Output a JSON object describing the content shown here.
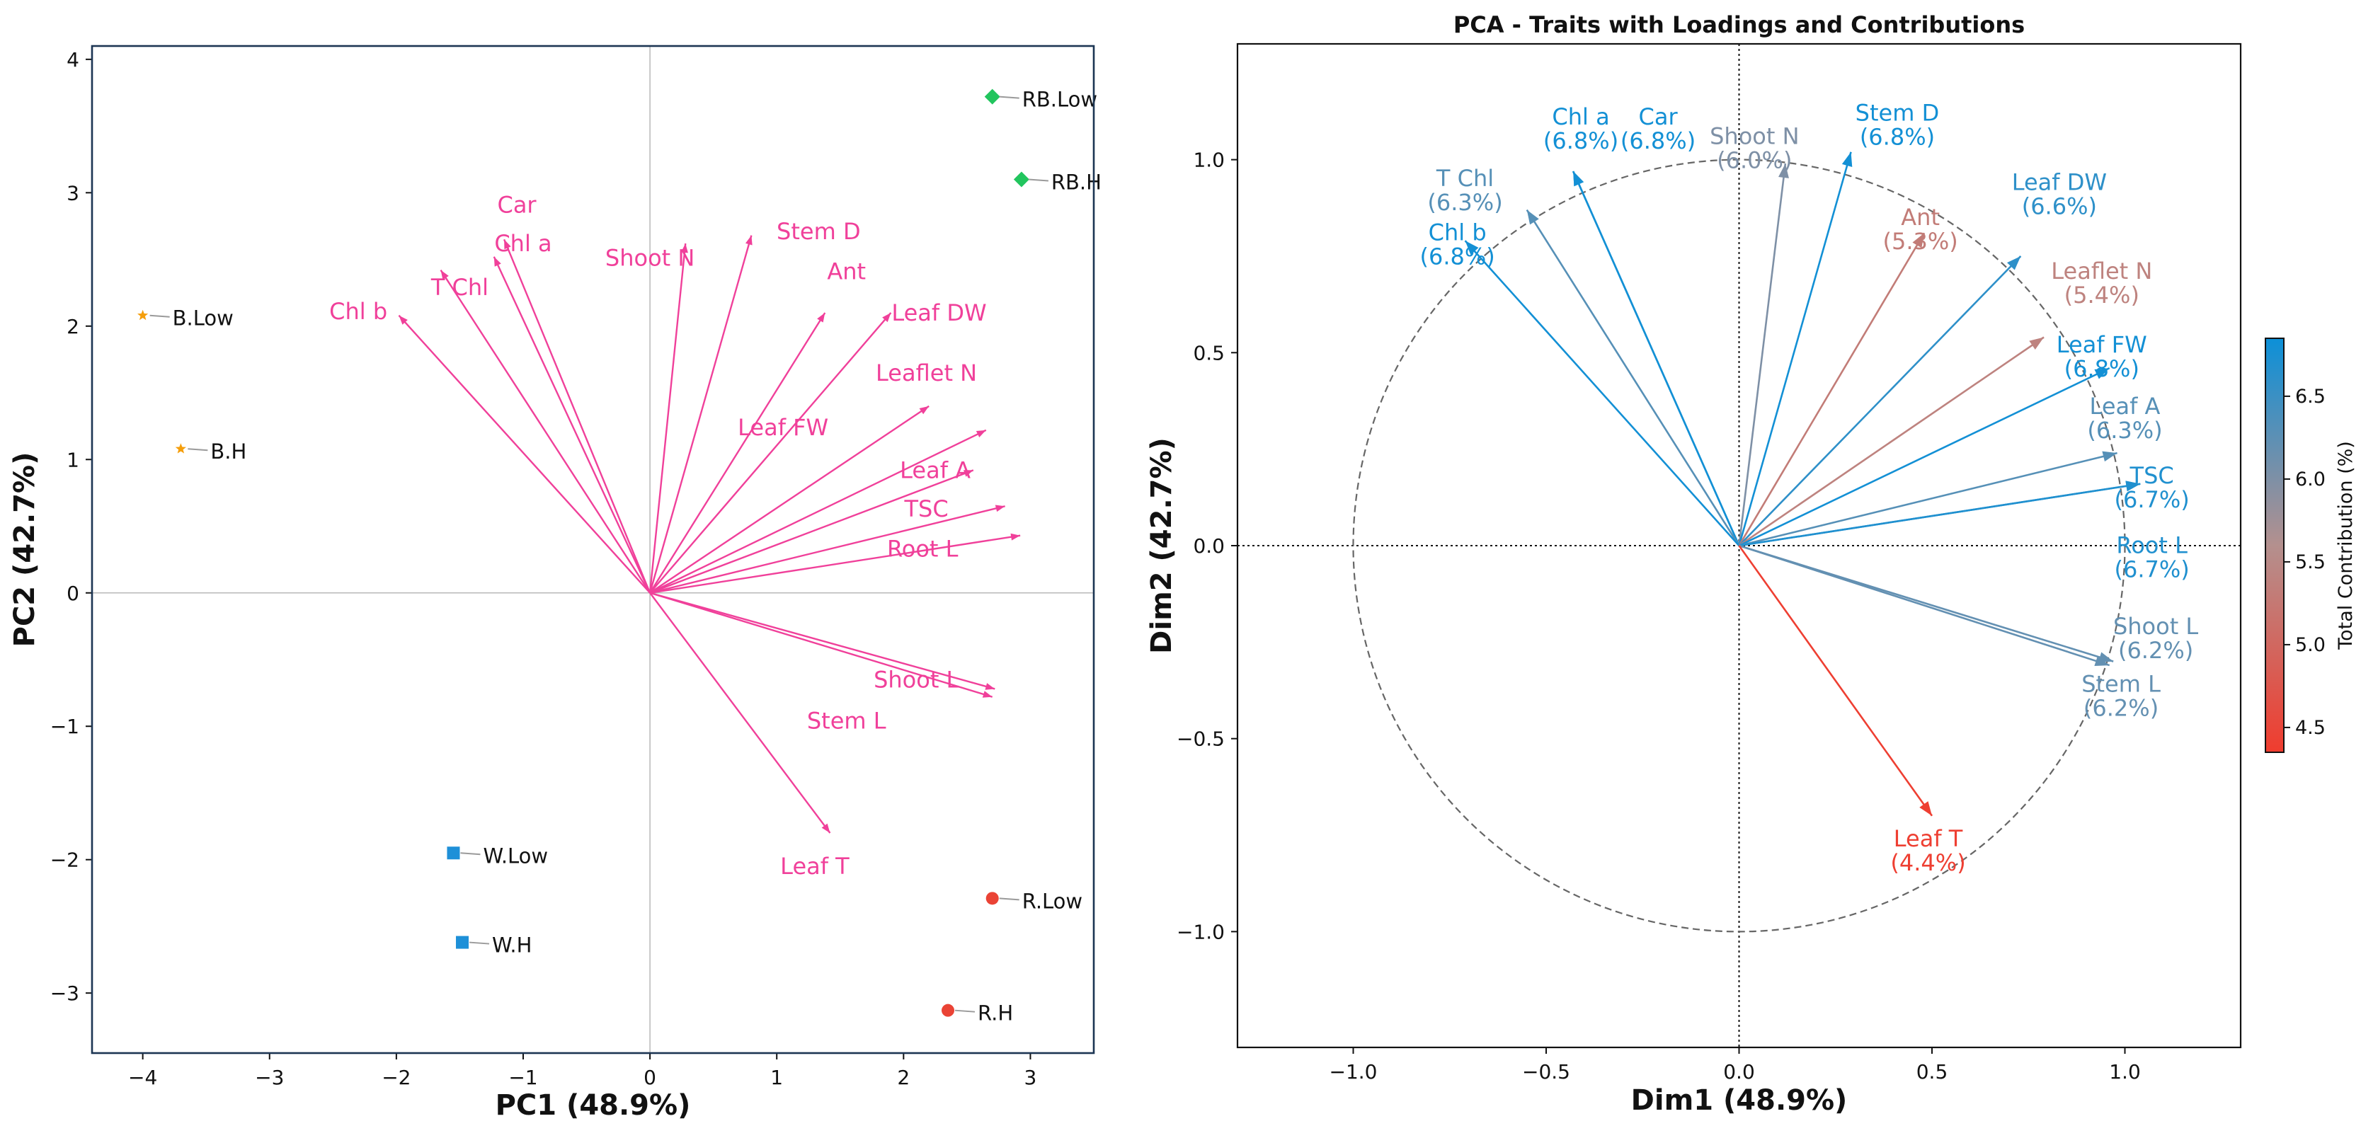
{
  "chart_data": [
    {
      "type": "scatter",
      "subtype": "biplot",
      "title": "",
      "xlabel": "PC1 (48.9%)",
      "ylabel": "PC2 (42.7%)",
      "xlim": [
        -4.4,
        3.5
      ],
      "ylim": [
        -3.45,
        4.1
      ],
      "xticks": [
        -4,
        -3,
        -2,
        -1,
        0,
        1,
        2,
        3
      ],
      "yticks": [
        -3,
        -2,
        -1,
        0,
        1,
        2,
        3,
        4
      ],
      "tick_labels_x": [
        "−4",
        "−3",
        "−2",
        "−1",
        "0",
        "1",
        "2",
        "3"
      ],
      "tick_labels_y": [
        "−3",
        "−2",
        "−1",
        "0",
        "1",
        "2",
        "3",
        "4"
      ],
      "arrow_color": "#f0409a",
      "samples": [
        {
          "name": "RB.Low",
          "x": 2.7,
          "y": 3.72,
          "marker": "diamond",
          "color": "#22c55e"
        },
        {
          "name": "RB.H",
          "x": 2.93,
          "y": 3.1,
          "marker": "diamond",
          "color": "#22c55e"
        },
        {
          "name": "B.Low",
          "x": -4.0,
          "y": 2.08,
          "marker": "star",
          "color": "#f59e0b"
        },
        {
          "name": "B.H",
          "x": -3.7,
          "y": 1.08,
          "marker": "star",
          "color": "#f59e0b"
        },
        {
          "name": "W.Low",
          "x": -1.55,
          "y": -1.95,
          "marker": "square",
          "color": "#1e90d8"
        },
        {
          "name": "W.H",
          "x": -1.48,
          "y": -2.62,
          "marker": "square",
          "color": "#1e90d8"
        },
        {
          "name": "R.Low",
          "x": 2.7,
          "y": -2.29,
          "marker": "circle",
          "color": "#ea4335"
        },
        {
          "name": "R.H",
          "x": 2.35,
          "y": -3.13,
          "marker": "circle",
          "color": "#ea4335"
        }
      ],
      "loadings": [
        {
          "name": "Car",
          "x": -1.15,
          "y": 2.65,
          "label_x": -1.05,
          "label_y": 2.91
        },
        {
          "name": "Chl a",
          "x": -1.23,
          "y": 2.52,
          "label_x": -1.0,
          "label_y": 2.62
        },
        {
          "name": "Chl b",
          "x": -1.98,
          "y": 2.08,
          "label_x": -2.3,
          "label_y": 2.11
        },
        {
          "name": "T Chl",
          "x": -1.65,
          "y": 2.42,
          "label_x": -1.5,
          "label_y": 2.29
        },
        {
          "name": "Shoot N",
          "x": 0.28,
          "y": 2.62,
          "label_x": 0.0,
          "label_y": 2.51
        },
        {
          "name": "Stem D",
          "x": 0.8,
          "y": 2.68,
          "label_x": 1.33,
          "label_y": 2.71
        },
        {
          "name": "Ant",
          "x": 1.38,
          "y": 2.1,
          "label_x": 1.55,
          "label_y": 2.41
        },
        {
          "name": "Leaf DW",
          "x": 1.9,
          "y": 2.1,
          "label_x": 2.28,
          "label_y": 2.1
        },
        {
          "name": "Leaflet N",
          "x": 2.2,
          "y": 1.4,
          "label_x": 2.18,
          "label_y": 1.65
        },
        {
          "name": "Leaf FW",
          "x": 2.65,
          "y": 1.22,
          "label_x": 1.05,
          "label_y": 1.24
        },
        {
          "name": "Leaf A",
          "x": 2.55,
          "y": 0.92,
          "label_x": 2.25,
          "label_y": 0.92
        },
        {
          "name": "TSC",
          "x": 2.8,
          "y": 0.65,
          "label_x": 2.18,
          "label_y": 0.63
        },
        {
          "name": "Root L",
          "x": 2.92,
          "y": 0.43,
          "label_x": 2.15,
          "label_y": 0.33
        },
        {
          "name": "Shoot L",
          "x": 2.72,
          "y": -0.72,
          "label_x": 2.1,
          "label_y": -0.65
        },
        {
          "name": "Stem L",
          "x": 2.7,
          "y": -0.78,
          "label_x": 1.55,
          "label_y": -0.96
        },
        {
          "name": "Leaf T",
          "x": 1.42,
          "y": -1.8,
          "label_x": 1.3,
          "label_y": -2.05
        }
      ]
    },
    {
      "type": "line",
      "subtype": "correlation_circle",
      "title": "PCA - Traits with Loadings and Contributions",
      "xlabel": "Dim1 (48.9%)",
      "ylabel": "Dim2 (42.7%)",
      "xlim": [
        -1.3,
        1.3
      ],
      "ylim": [
        -1.3,
        1.3
      ],
      "xticks": [
        -1.0,
        -0.5,
        0.0,
        0.5,
        1.0
      ],
      "yticks": [
        -1.0,
        -0.5,
        0.0,
        0.5,
        1.0
      ],
      "tick_labels_x": [
        "−1.0",
        "−0.5",
        "0.0",
        "0.5",
        "1.0"
      ],
      "tick_labels_y": [
        "−1.0",
        "−0.5",
        "0.0",
        "0.5",
        "1.0"
      ],
      "circle_radius": 1.0,
      "colorbar": {
        "label": "Total Contribution (%)",
        "min": 4.35,
        "max": 6.85,
        "ticks": [
          "4.5",
          "5.0",
          "5.5",
          "6.0",
          "6.5"
        ],
        "tick_values": [
          4.5,
          5.0,
          5.5,
          6.0,
          6.5
        ],
        "color_low": "#f03c2e",
        "color_mid": "#b4908e",
        "color_high": "#0c90d8"
      },
      "traits": [
        {
          "name": "Chl a",
          "pct": "(6.8%)",
          "contribution": 6.8,
          "x": -0.43,
          "y": 0.97,
          "label_x": -0.41,
          "label_y": 1.08
        },
        {
          "name": "Car",
          "pct": "(6.8%)",
          "contribution": 6.8,
          "x": -0.43,
          "y": 0.97,
          "label_x": -0.21,
          "label_y": 1.08
        },
        {
          "name": "Shoot N",
          "pct": "(6.0%)",
          "contribution": 6.0,
          "x": 0.12,
          "y": 0.99,
          "label_x": 0.04,
          "label_y": 1.03
        },
        {
          "name": "Stem D",
          "pct": "(6.8%)",
          "contribution": 6.8,
          "x": 0.29,
          "y": 1.02,
          "label_x": 0.41,
          "label_y": 1.09
        },
        {
          "name": "T Chl",
          "pct": "(6.3%)",
          "contribution": 6.3,
          "x": -0.55,
          "y": 0.87,
          "label_x": -0.71,
          "label_y": 0.92
        },
        {
          "name": "Chl b",
          "pct": "(6.8%)",
          "contribution": 6.8,
          "x": -0.71,
          "y": 0.79,
          "label_x": -0.73,
          "label_y": 0.78
        },
        {
          "name": "Ant",
          "pct": "(5.3%)",
          "contribution": 5.3,
          "x": 0.48,
          "y": 0.81,
          "label_x": 0.47,
          "label_y": 0.82
        },
        {
          "name": "Leaf DW",
          "pct": "(6.6%)",
          "contribution": 6.6,
          "x": 0.73,
          "y": 0.75,
          "label_x": 0.83,
          "label_y": 0.91
        },
        {
          "name": "Leaflet N",
          "pct": "(5.4%)",
          "contribution": 5.4,
          "x": 0.79,
          "y": 0.54,
          "label_x": 0.94,
          "label_y": 0.68
        },
        {
          "name": "Leaf FW",
          "pct": "(6.8%)",
          "contribution": 6.8,
          "x": 0.96,
          "y": 0.46,
          "label_x": 0.94,
          "label_y": 0.49
        },
        {
          "name": "Leaf A",
          "pct": "(6.3%)",
          "contribution": 6.3,
          "x": 0.98,
          "y": 0.24,
          "label_x": 1.0,
          "label_y": 0.33
        },
        {
          "name": "TSC",
          "pct": "(6.7%)",
          "contribution": 6.7,
          "x": 1.04,
          "y": 0.16,
          "label_x": 1.07,
          "label_y": 0.15
        },
        {
          "name": "Root L",
          "pct": "(6.7%)",
          "contribution": 6.7,
          "x": 1.04,
          "y": 0.16,
          "label_x": 1.07,
          "label_y": -0.03
        },
        {
          "name": "Shoot L",
          "pct": "(6.2%)",
          "contribution": 6.2,
          "x": 0.97,
          "y": -0.3,
          "label_x": 1.08,
          "label_y": -0.24
        },
        {
          "name": "Stem L",
          "pct": "(6.2%)",
          "contribution": 6.2,
          "x": 0.96,
          "y": -0.31,
          "label_x": 0.99,
          "label_y": -0.39
        },
        {
          "name": "Leaf T",
          "pct": "(4.4%)",
          "contribution": 4.4,
          "x": 0.5,
          "y": -0.7,
          "label_x": 0.49,
          "label_y": -0.79
        }
      ]
    }
  ]
}
